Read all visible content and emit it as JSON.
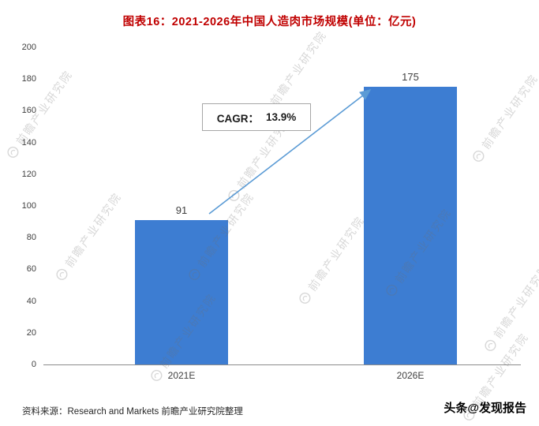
{
  "title": "图表16：2021-2026年中国人造肉市场规模(单位：亿元)",
  "chart_data": {
    "type": "bar",
    "title": "图表16：2021-2026年中国人造肉市场规模(单位：亿元)",
    "unit": "亿元",
    "categories": [
      "2021E",
      "2026E"
    ],
    "values": [
      91,
      175
    ],
    "ylim": [
      0,
      200
    ],
    "yticks": [
      0,
      20,
      40,
      60,
      80,
      100,
      120,
      140,
      160,
      180,
      200
    ],
    "grid": false,
    "legend": null,
    "bar_color": "#3D7DD2",
    "annotation": {
      "label": "CAGR：",
      "value": "13.9%"
    }
  },
  "watermark": {
    "text": "前瞻产业研究院"
  },
  "footer": {
    "source": "资料来源：Research and Markets 前瞻产业研究院整理"
  },
  "brand": "头条@发现报告",
  "colors": {
    "title": "#C00000",
    "bar": "#3D7DD2",
    "arrow": "#5B9BD5",
    "axis": "#8C8C8C",
    "label": "#404040",
    "watermark": "rgba(110,110,110,0.28)"
  }
}
